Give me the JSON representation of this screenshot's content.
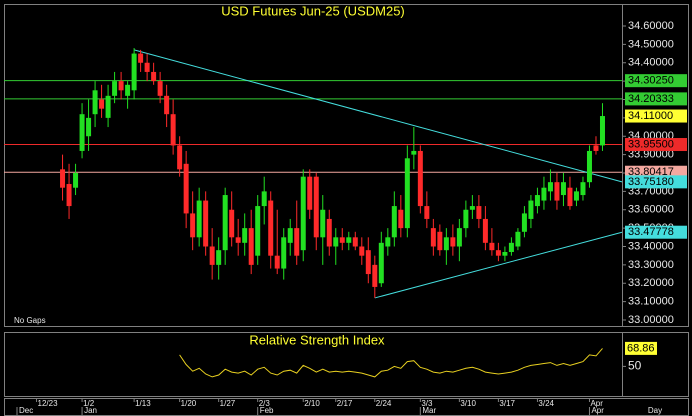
{
  "chart_data": [
    {
      "type": "candlestick",
      "title": "USD Futures Jun-25 (USDM25)",
      "annotation": "No Gaps",
      "up_color": "#22e022",
      "down_color": "#ff2a2a",
      "open": [
        33.82,
        33.74,
        33.72,
        33.92,
        34.0,
        34.12,
        34.2,
        34.1,
        34.22,
        34.3,
        34.22,
        34.25,
        34.45,
        34.4,
        34.35,
        34.3,
        34.22,
        34.12,
        33.95,
        33.85,
        33.58,
        33.45,
        33.65,
        33.4,
        33.3,
        33.38,
        33.6,
        33.45,
        33.42,
        33.5,
        33.35,
        33.62,
        33.65,
        33.35,
        33.28,
        33.42,
        33.5,
        33.38,
        33.78,
        33.78,
        33.45,
        33.55,
        33.4,
        33.45,
        33.42,
        33.45,
        33.4,
        33.38,
        33.3,
        33.2,
        33.4,
        33.45,
        33.6,
        33.5,
        33.9,
        33.92,
        33.62,
        33.5,
        33.48,
        33.38,
        33.45,
        33.4,
        33.5,
        33.6,
        33.62,
        33.55,
        33.42,
        33.38,
        33.35,
        33.37,
        33.4,
        33.48,
        33.55,
        33.62,
        33.65,
        33.7,
        33.75,
        33.68,
        33.72,
        33.65,
        33.68,
        33.75,
        33.95,
        33.95
      ],
      "high": [
        33.9,
        33.85,
        33.85,
        34.18,
        34.2,
        34.3,
        34.28,
        34.28,
        34.35,
        34.35,
        34.3,
        34.48,
        34.47,
        34.45,
        34.4,
        34.35,
        34.28,
        34.2,
        34.0,
        33.92,
        33.7,
        33.72,
        33.7,
        33.5,
        33.45,
        33.72,
        33.7,
        33.55,
        33.58,
        33.6,
        33.68,
        33.78,
        33.7,
        33.6,
        33.5,
        33.55,
        33.65,
        33.82,
        33.82,
        33.8,
        33.68,
        33.6,
        33.5,
        33.5,
        33.48,
        33.48,
        33.45,
        33.45,
        33.35,
        33.48,
        33.5,
        33.7,
        33.68,
        33.95,
        34.05,
        33.95,
        33.7,
        33.55,
        33.52,
        33.5,
        33.52,
        33.55,
        33.65,
        33.68,
        33.68,
        33.62,
        33.5,
        33.42,
        33.4,
        33.45,
        33.5,
        33.62,
        33.68,
        33.72,
        33.78,
        33.82,
        33.8,
        33.8,
        33.78,
        33.72,
        33.78,
        33.95,
        34.0,
        34.18
      ],
      "low": [
        33.65,
        33.55,
        33.68,
        33.88,
        33.92,
        34.05,
        34.1,
        34.05,
        34.18,
        34.2,
        34.15,
        34.2,
        34.35,
        34.3,
        34.28,
        34.18,
        34.05,
        33.9,
        33.78,
        33.5,
        33.38,
        33.4,
        33.35,
        33.22,
        33.22,
        33.3,
        33.4,
        33.35,
        33.35,
        33.25,
        33.3,
        33.52,
        33.28,
        33.25,
        33.22,
        33.35,
        33.3,
        33.32,
        33.55,
        33.38,
        33.3,
        33.35,
        33.3,
        33.38,
        33.38,
        33.38,
        33.3,
        33.2,
        33.12,
        33.18,
        33.35,
        33.4,
        33.45,
        33.45,
        33.82,
        33.58,
        33.5,
        33.35,
        33.35,
        33.3,
        33.35,
        33.32,
        33.45,
        33.55,
        33.5,
        33.38,
        33.35,
        33.32,
        33.32,
        33.35,
        33.38,
        33.45,
        33.5,
        33.58,
        33.6,
        33.65,
        33.6,
        33.62,
        33.6,
        33.62,
        33.65,
        33.72,
        33.9,
        33.92
      ],
      "close": [
        33.72,
        33.62,
        33.8,
        34.12,
        34.1,
        34.25,
        34.15,
        34.22,
        34.3,
        34.25,
        34.28,
        34.45,
        34.4,
        34.35,
        34.3,
        34.22,
        34.12,
        33.95,
        33.82,
        33.58,
        33.45,
        33.65,
        33.4,
        33.3,
        33.38,
        33.68,
        33.45,
        33.42,
        33.5,
        33.3,
        33.62,
        33.7,
        33.35,
        33.28,
        33.45,
        33.5,
        33.35,
        33.78,
        33.6,
        33.45,
        33.6,
        33.4,
        33.45,
        33.42,
        33.45,
        33.4,
        33.35,
        33.25,
        33.18,
        33.42,
        33.45,
        33.62,
        33.5,
        33.88,
        33.92,
        33.62,
        33.55,
        33.4,
        33.38,
        33.45,
        33.4,
        33.5,
        33.6,
        33.62,
        33.55,
        33.42,
        33.38,
        33.35,
        33.37,
        33.42,
        33.48,
        33.58,
        33.65,
        33.68,
        33.72,
        33.75,
        33.65,
        33.75,
        33.62,
        33.7,
        33.75,
        33.92,
        33.92,
        34.11
      ],
      "xlim": [
        -9,
        86
      ],
      "xticks": [
        {
          "value": -4,
          "label": "12/23"
        },
        {
          "value": 3,
          "label": "1/2"
        },
        {
          "value": 11,
          "label": "1/13"
        },
        {
          "value": 18,
          "label": "1/20"
        },
        {
          "value": 24,
          "label": "1/27"
        },
        {
          "value": 30,
          "label": "2/3"
        },
        {
          "value": 37,
          "label": "2/10"
        },
        {
          "value": 42,
          "label": "2/17"
        },
        {
          "value": 48,
          "label": "2/24"
        },
        {
          "value": 55,
          "label": "3/3"
        },
        {
          "value": 61,
          "label": "3/10"
        },
        {
          "value": 67,
          "label": "3/17"
        },
        {
          "value": 73,
          "label": "3/24"
        },
        {
          "value": 81,
          "label": "Apr"
        }
      ],
      "month_ticks": [
        {
          "value": -7,
          "label": "Dec"
        },
        {
          "value": 3,
          "label": "Jan"
        },
        {
          "value": 30,
          "label": "Feb"
        },
        {
          "value": 55,
          "label": "Mar"
        },
        {
          "value": 81,
          "label": "Apr"
        }
      ],
      "period_label": "Day",
      "ylim": [
        33.0,
        34.6
      ],
      "yticks": [
        {
          "value": 33.0,
          "label": "33.00000"
        },
        {
          "value": 33.1,
          "label": "33.10000"
        },
        {
          "value": 33.2,
          "label": "33.20000"
        },
        {
          "value": 33.3,
          "label": "33.30000"
        },
        {
          "value": 33.4,
          "label": "33.40000"
        },
        {
          "value": 33.5,
          "label": "33.50000"
        },
        {
          "value": 33.6,
          "label": "33.60000"
        },
        {
          "value": 33.7,
          "label": "33.70000"
        },
        {
          "value": 33.8,
          "label": "33.80000"
        },
        {
          "value": 33.9,
          "label": "33.90000"
        },
        {
          "value": 34.0,
          "label": "34.00000"
        },
        {
          "value": 34.1,
          "label": "34.10000"
        },
        {
          "value": 34.2,
          "label": "34.20000"
        },
        {
          "value": 34.3,
          "label": "34.30000"
        },
        {
          "value": 34.4,
          "label": "34.40000"
        },
        {
          "value": 34.5,
          "label": "34.50000"
        },
        {
          "value": 34.6,
          "label": "34.60000"
        }
      ],
      "levels": [
        {
          "value": 34.3025,
          "label": "34.30250",
          "color": "#33cc33"
        },
        {
          "value": 34.20333,
          "label": "34.20333",
          "color": "#33cc33"
        },
        {
          "value": 33.955,
          "label": "33.95500",
          "color": "#ee2a2a"
        },
        {
          "value": 33.80417,
          "label": "33.80417",
          "color": "#f4a8a0"
        }
      ],
      "last_price": {
        "value": 34.11,
        "label": "34.11000",
        "color": "#ffff33"
      },
      "trendlines": [
        {
          "x": [
            11,
            86
          ],
          "y": [
            34.47,
            33.7518
          ],
          "label": "33.75180",
          "color": "#44dddd"
        },
        {
          "x": [
            48,
            86
          ],
          "y": [
            33.12,
            33.47778
          ],
          "label": "33.47778",
          "color": "#44dddd"
        }
      ]
    },
    {
      "type": "line",
      "title": "Relative Strength Index",
      "color": "#e8d020",
      "label_color": "#ffff33",
      "xlim": [
        -9,
        86
      ],
      "ylim": [
        20,
        85
      ],
      "yticks": [
        50
      ],
      "values": [
        null,
        null,
        null,
        null,
        null,
        null,
        null,
        null,
        null,
        null,
        null,
        null,
        null,
        null,
        null,
        null,
        null,
        null,
        62,
        52,
        45,
        48,
        42,
        39,
        41,
        47,
        44,
        43,
        45,
        41,
        47,
        49,
        43,
        41,
        45,
        46,
        43,
        51,
        48,
        44,
        47,
        44,
        45,
        44,
        45,
        44,
        43,
        41,
        39,
        45,
        46,
        50,
        48,
        55,
        56,
        49,
        47,
        44,
        43,
        45,
        44,
        46,
        48,
        49,
        47,
        44,
        43,
        42,
        43,
        44,
        46,
        49,
        51,
        52,
        53,
        54,
        51,
        53,
        51,
        53,
        55,
        62,
        61,
        68.86
      ]
    }
  ]
}
